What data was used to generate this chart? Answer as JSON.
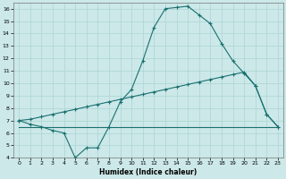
{
  "xlabel": "Humidex (Indice chaleur)",
  "background_color": "#cce8e8",
  "grid_color": "#aad4d4",
  "line_color": "#1a7070",
  "line1_x": [
    0,
    1,
    2,
    3,
    4,
    5,
    6,
    7,
    8,
    9,
    10,
    11,
    12,
    13,
    14,
    15,
    16,
    17,
    18,
    19,
    20,
    21,
    22,
    23
  ],
  "line1_y": [
    7.0,
    6.7,
    6.5,
    6.2,
    6.0,
    4.0,
    4.8,
    4.8,
    6.5,
    8.5,
    9.5,
    11.8,
    14.5,
    16.0,
    16.1,
    16.2,
    15.5,
    14.8,
    13.2,
    11.8,
    10.8,
    9.8,
    7.5,
    6.5
  ],
  "line2_x": [
    0,
    1,
    2,
    3,
    4,
    5,
    6,
    7,
    8,
    9,
    10,
    11,
    12,
    13,
    14,
    15,
    16,
    17,
    18,
    19,
    20,
    21,
    22,
    23
  ],
  "line2_y": [
    7.0,
    7.1,
    7.3,
    7.5,
    7.7,
    7.9,
    8.1,
    8.3,
    8.5,
    8.7,
    8.9,
    9.1,
    9.3,
    9.5,
    9.7,
    9.9,
    10.1,
    10.3,
    10.5,
    10.7,
    10.9,
    9.8,
    7.5,
    6.5
  ],
  "line3_x": [
    0,
    1,
    2,
    3,
    4,
    5,
    6,
    7,
    8,
    9,
    10,
    11,
    12,
    13,
    14,
    15,
    16,
    17,
    18,
    19,
    20,
    21,
    22,
    23
  ],
  "line3_y": [
    6.5,
    6.5,
    6.5,
    6.5,
    6.5,
    6.5,
    6.5,
    6.5,
    6.5,
    6.5,
    6.5,
    6.5,
    6.5,
    6.5,
    6.5,
    6.5,
    6.5,
    6.5,
    6.5,
    6.5,
    6.5,
    6.5,
    6.5,
    6.5
  ],
  "xlim": [
    -0.5,
    23.5
  ],
  "ylim": [
    4,
    16.5
  ],
  "yticks": [
    4,
    5,
    6,
    7,
    8,
    9,
    10,
    11,
    12,
    13,
    14,
    15,
    16
  ],
  "xticks": [
    0,
    1,
    2,
    3,
    4,
    5,
    6,
    7,
    8,
    9,
    10,
    11,
    12,
    13,
    14,
    15,
    16,
    17,
    18,
    19,
    20,
    21,
    22,
    23
  ]
}
